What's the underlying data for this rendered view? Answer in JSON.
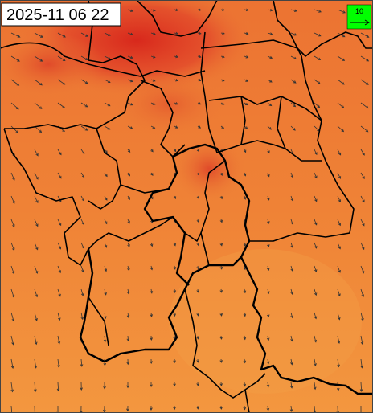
{
  "timestamp": "2025-11 06 22",
  "legend": {
    "label": "10"
  }
}
